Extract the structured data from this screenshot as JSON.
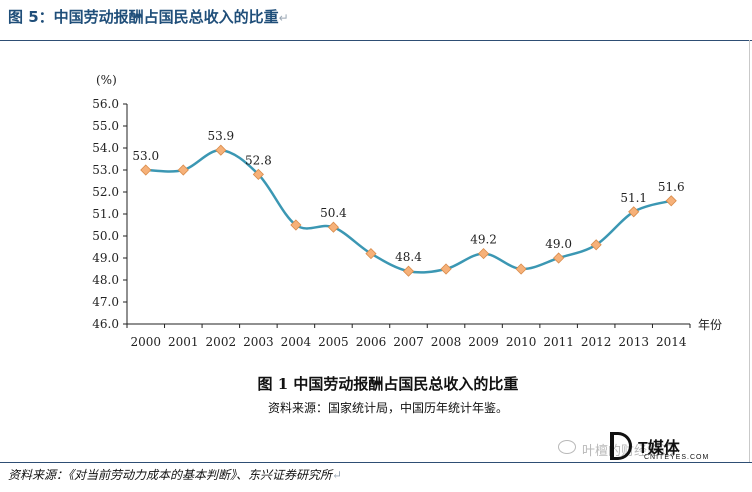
{
  "header": {
    "title": "图 5：中国劳动报酬占国民总收入的比重",
    "return_mark": "↵"
  },
  "footer": {
    "source": "资料来源：《对当前劳动力成本的基本判断》、东兴证券研究所",
    "return_mark": "↵"
  },
  "watermark": {
    "account": "叶檀的财经笔记",
    "brand": "T媒体",
    "sub": "CNITEYES.COM"
  },
  "chart_data": {
    "type": "line",
    "title": "图 1  中国劳动报酬占国民总收入的比重",
    "subtitle": "资料来源：国家统计局，中国历年统计年鉴。",
    "ylabel": "(%)",
    "xlabel": "年份",
    "ylim": [
      46.0,
      56.0
    ],
    "yticks": [
      "46.0",
      "47.0",
      "48.0",
      "49.0",
      "50.0",
      "51.0",
      "52.0",
      "53.0",
      "54.0",
      "55.0",
      "56.0"
    ],
    "categories": [
      "2000",
      "2001",
      "2002",
      "2003",
      "2004",
      "2005",
      "2006",
      "2007",
      "2008",
      "2009",
      "2010",
      "2011",
      "2012",
      "2013",
      "2014"
    ],
    "series": [
      {
        "values": [
          53.0,
          53.0,
          53.9,
          52.8,
          50.5,
          50.4,
          49.2,
          48.4,
          48.5,
          49.2,
          48.5,
          49.0,
          49.6,
          51.1,
          51.6
        ]
      }
    ],
    "data_labels": [
      {
        "index": 0,
        "text": "53.0"
      },
      {
        "index": 2,
        "text": "53.9"
      },
      {
        "index": 3,
        "text": "52.8"
      },
      {
        "index": 5,
        "text": "50.4"
      },
      {
        "index": 7,
        "text": "48.4"
      },
      {
        "index": 9,
        "text": "49.2"
      },
      {
        "index": 11,
        "text": "49.0"
      },
      {
        "index": 13,
        "text": "51.1"
      },
      {
        "index": 14,
        "text": "51.6"
      }
    ],
    "colors": {
      "line": "#3b97b3",
      "marker": "#f6b179",
      "marker_edge": "#d98b4a",
      "axis": "#222222"
    },
    "grid": false,
    "legend": "none"
  }
}
